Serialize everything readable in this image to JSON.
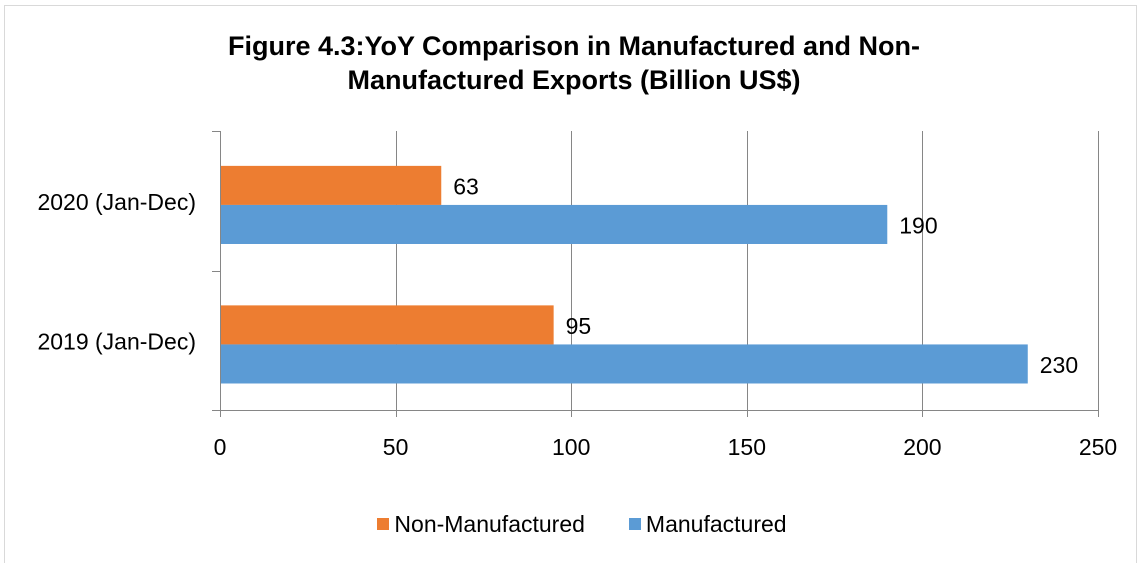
{
  "chart_data": {
    "type": "bar",
    "orientation": "horizontal",
    "title": "Figure 4.3:YoY Comparison in Manufactured and Non-Manufactured Exports (Billion US$)",
    "categories": [
      "2019 (Jan-Dec)",
      "2020 (Jan-Dec)"
    ],
    "series": [
      {
        "name": "Non-Manufactured",
        "values": [
          95,
          63
        ],
        "color": "#ED7D31"
      },
      {
        "name": "Manufactured",
        "values": [
          230,
          190
        ],
        "color": "#5B9BD5"
      }
    ],
    "xlim": [
      0,
      250
    ],
    "x_ticks": [
      0,
      50,
      100,
      150,
      200,
      250
    ],
    "grid": true,
    "legend": "bottom",
    "data_labels": true
  }
}
